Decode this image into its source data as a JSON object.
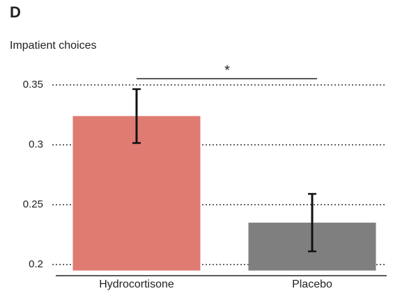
{
  "chart_data": {
    "type": "bar",
    "panel": "D",
    "title": "Impatient choices",
    "categories": [
      "Hydrocortisone",
      "Placebo"
    ],
    "values": [
      0.324,
      0.235
    ],
    "errors": [
      0.0225,
      0.024
    ],
    "colors": [
      "#e07b72",
      "#7f7f7f"
    ],
    "ylim": [
      0.195,
      0.36
    ],
    "yticks": [
      0.2,
      0.25,
      0.3,
      0.35
    ],
    "grid": true,
    "annotation": "*"
  }
}
